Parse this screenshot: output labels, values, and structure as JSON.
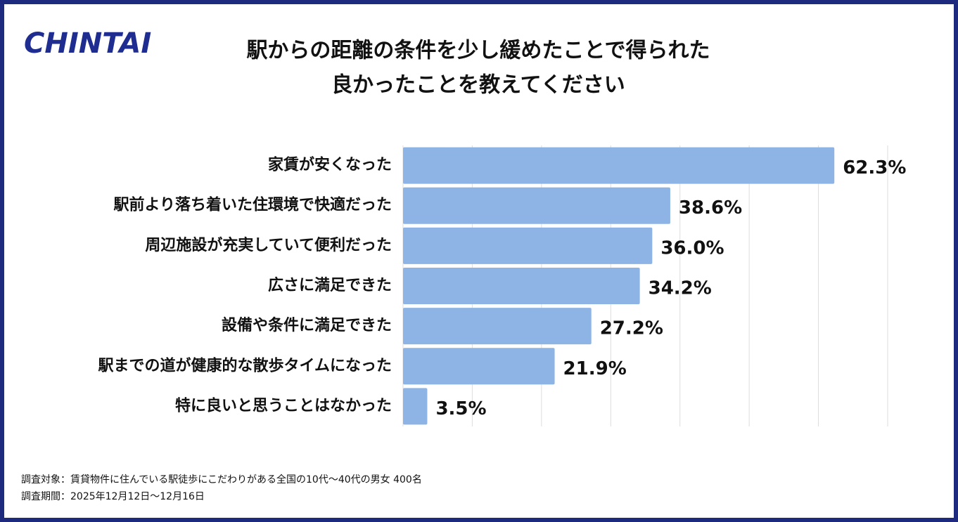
{
  "logo": "CHINTAI",
  "chart_data": {
    "type": "barh",
    "title_lines": [
      "駅からの距離の条件を少し緩めたことで得られた",
      "良かったことを教えてください"
    ],
    "categories": [
      "家賃が安くなった",
      "駅前より落ち着いた住環境で快適だった",
      "周辺施設が充実していて便利だった",
      "広さに満足できた",
      "設備や条件に満足できた",
      "駅までの道が健康的な散歩タイムになった",
      "特に良いと思うことはなかった"
    ],
    "values": [
      62.3,
      38.6,
      36.0,
      34.2,
      27.2,
      21.9,
      3.5
    ],
    "value_labels": [
      "62.3%",
      "38.6%",
      "36.0%",
      "34.2%",
      "27.2%",
      "21.9%",
      "3.5%"
    ],
    "color": "#8db4e5",
    "xlim": [
      0,
      70
    ],
    "xticks": [
      0,
      10,
      20,
      30,
      40,
      50,
      60,
      70
    ],
    "grid": true
  },
  "notes": [
    "調査対象：賃貸物件に住んでいる駅徒歩にこだわりがある全国の10代〜40代の男女 400名",
    "調査期間：2025年12月12日〜12月16日"
  ]
}
